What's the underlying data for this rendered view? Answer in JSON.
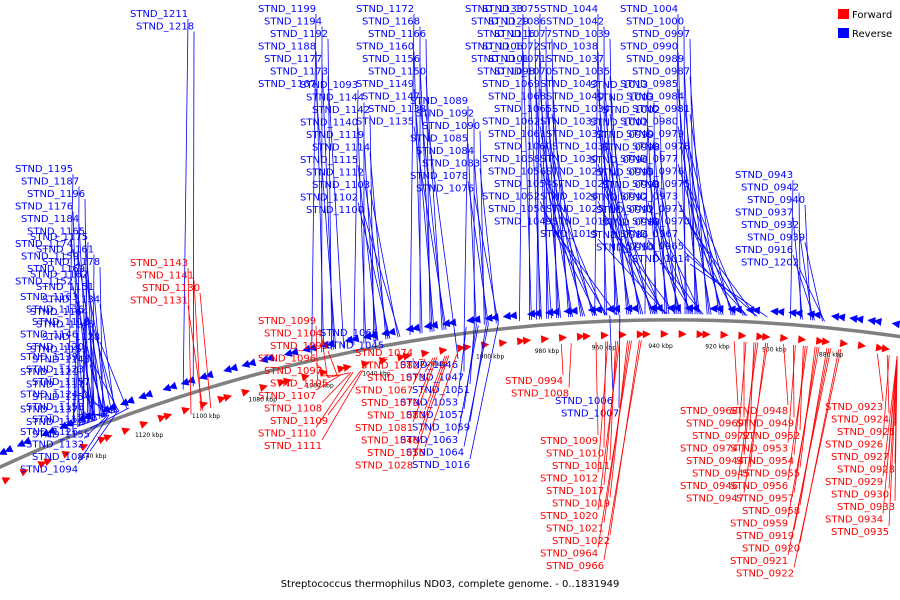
{
  "caption": "Streptococcus thermophilus ND03, complete genome. - 0..1831949",
  "legend": [
    {
      "label": "Forward",
      "color": "#ff0000"
    },
    {
      "label": "Reverse",
      "color": "#0000ff"
    }
  ],
  "colors": {
    "forward": "#ff0000",
    "reverse": "#0000ff",
    "backbone": "#808080"
  },
  "ticks": [
    "1140 kbp",
    "1120 kbp",
    "1100 kbp",
    "1080 kbp",
    "1060 kbp",
    "1040 kbp",
    "1020 kbp",
    "1000 kbp",
    "980 kbp",
    "960 kbp",
    "940 kbp",
    "920 kbp",
    "900 kbp",
    "880 kbp"
  ],
  "reverse_labels": [
    "STND_1211",
    "STND_1218",
    "STND_1199",
    "STND_1194",
    "STND_1192",
    "STND_1188",
    "STND_1177",
    "STND_1173",
    "STND_1167",
    "STND_1172",
    "STND_1168",
    "STND_1166",
    "STND_1160",
    "STND_1156",
    "STND_1150",
    "STND_1149",
    "STND_1147",
    "STND_1138",
    "STND_1135",
    "STND_1133",
    "STND_1129",
    "STND_1116",
    "STND_1106",
    "STND_1101",
    "STND_1098",
    "STND_1093",
    "STND_1144",
    "STND_1142",
    "STND_1140",
    "STND_1119",
    "STND_1114",
    "STND_1115",
    "STND_1112",
    "STND_1103",
    "STND_1102",
    "STND_1100",
    "STND_1089",
    "STND_1092",
    "STND_1090",
    "STND_1085",
    "STND_1084",
    "STND_1083",
    "STND_1078",
    "STND_1076",
    "STND_1075",
    "STND_1086",
    "STND_1077",
    "STND_1072",
    "STND_1071",
    "STND_1070",
    "STND_1069",
    "STND_1068",
    "STND_1065",
    "STND_1062",
    "STND_1061",
    "STND_1060",
    "STND_1058",
    "STND_1056",
    "STND_1054",
    "STND_1052",
    "STND_1050",
    "STND_1049",
    "STND_1044",
    "STND_1042",
    "STND_1039",
    "STND_1038",
    "STND_1037",
    "STND_1035",
    "STND_1043",
    "STND_1040",
    "STND_1034",
    "STND_1033",
    "STND_1032",
    "STND_1031",
    "STND_1030",
    "STND_1029",
    "STND_1027",
    "STND_1026",
    "STND_1025",
    "STND_1018",
    "STND_1015",
    "STND_1004",
    "STND_1000",
    "STND_0997",
    "STND_0990",
    "STND_0989",
    "STND_0987",
    "STND_0985",
    "STND_0984",
    "STND_0981",
    "STND_0980",
    "STND_0979",
    "STND_0978",
    "STND_0977",
    "STND_0976",
    "STND_0975",
    "STND_0973",
    "STND_0971",
    "STND_0970",
    "STND_0967",
    "STND_0965",
    "STND_1014",
    "STND_1013",
    "STND_1003",
    "STND_1002",
    "STND_1001",
    "STND_0999",
    "STND_0998",
    "STND_0996",
    "STND_0995",
    "STND_0993",
    "STND_0992",
    "STND_0991",
    "STND_0988",
    "STND_0986",
    "STND_0950",
    "STND_0943",
    "STND_0942",
    "STND_0940",
    "STND_0937",
    "STND_0932",
    "STND_0939",
    "STND_0916",
    "STND_1202",
    "STND_1195",
    "STND_1187",
    "STND_1196",
    "STND_1176",
    "STND_1184",
    "STND_1165",
    "STND_1174",
    "STND_1159",
    "STND_1169",
    "STND_1152",
    "STND_1175",
    "STND_1161",
    "STND_1178",
    "STND_1162",
    "STND_1151",
    "STND_1134",
    "STND_1164",
    "STND_1145",
    "STND_1128",
    "STND_1153",
    "STND_1163",
    "STND_1136",
    "STND_1118",
    "STND_1146",
    "STND_1120",
    "STND_1148",
    "STND_1121",
    "STND_1117",
    "STND_1154",
    "STND_1137",
    "STND_1122",
    "STND_1155",
    "STND_1139",
    "STND_1123",
    "STND_1157",
    "STND_1124",
    "STND_1158",
    "STND_1125",
    "STND_1126",
    "STND_1132",
    "STND_1087",
    "STND_1094",
    "STND_1066",
    "STND_1045",
    "STND_1046",
    "STND_1047",
    "STND_1051",
    "STND_1053",
    "STND_1057",
    "STND_1059",
    "STND_1063",
    "STND_1064",
    "STND_1016",
    "STND_1006",
    "STND_1007"
  ],
  "forward_labels": [
    "STND_1143",
    "STND_1141",
    "STND_1130",
    "STND_1131",
    "STND_1099",
    "STND_1104",
    "STND_1095",
    "STND_1096",
    "STND_1097",
    "STND_1105",
    "STND_1107",
    "STND_1108",
    "STND_1109",
    "STND_1110",
    "STND_1111",
    "STND_1074",
    "STND_1082",
    "STND_1073",
    "STND_1067",
    "STND_1079",
    "STND_1080",
    "STND_1081",
    "STND_1048",
    "STND_1055",
    "STND_1028",
    "STND_0994",
    "STND_1008",
    "STND_1009",
    "STND_1010",
    "STND_1011",
    "STND_1012",
    "STND_1017",
    "STND_1019",
    "STND_1020",
    "STND_1021",
    "STND_1022",
    "STND_0964",
    "STND_0966",
    "STND_0968",
    "STND_0969",
    "STND_0972",
    "STND_0974",
    "STND_0944",
    "STND_0945",
    "STND_0946",
    "STND_0947",
    "STND_0948",
    "STND_0949",
    "STND_0952",
    "STND_0953",
    "STND_0954",
    "STND_0955",
    "STND_0956",
    "STND_0957",
    "STND_0958",
    "STND_0959",
    "STND_0919",
    "STND_0920",
    "STND_0921",
    "STND_0922",
    "STND_0923",
    "STND_0924",
    "STND_0925",
    "STND_0926",
    "STND_0927",
    "STND_0928",
    "STND_0929",
    "STND_0930",
    "STND_0933",
    "STND_0934",
    "STND_0935"
  ]
}
